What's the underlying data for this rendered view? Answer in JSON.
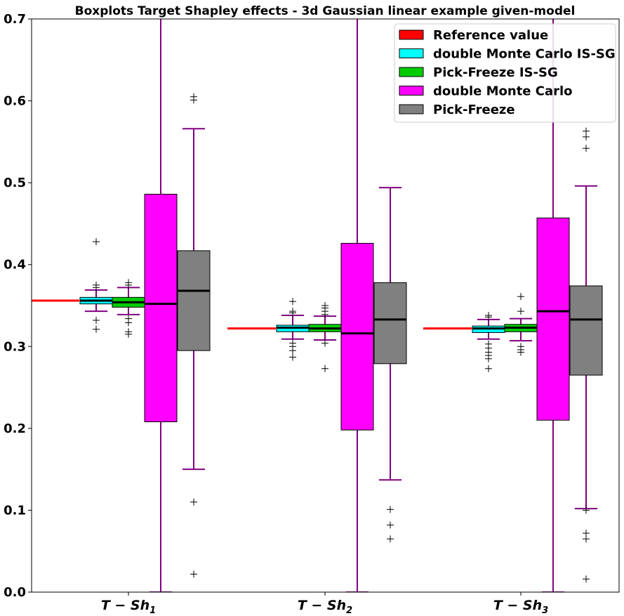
{
  "chart_data": {
    "type": "boxplot",
    "title": "Boxplots Target Shapley effects - 3d Gaussian linear example given-model",
    "xlabel": "",
    "ylabel": "",
    "ylim": [
      0,
      0.7
    ],
    "yticks": [
      "0.0",
      "0.1",
      "0.2",
      "0.3",
      "0.4",
      "0.5",
      "0.6",
      "0.7"
    ],
    "yticks_values": [
      0.0,
      0.1,
      0.2,
      0.3,
      0.4,
      0.5,
      0.6,
      0.7
    ],
    "categories": [
      {
        "main": "T − Sh",
        "sub": "1"
      },
      {
        "main": "T − Sh",
        "sub": "2"
      },
      {
        "main": "T − Sh",
        "sub": "3"
      }
    ],
    "legend_position": "top-right",
    "colors": {
      "reference": "#ff0000",
      "whisker": "#800080",
      "median": "#000000"
    },
    "reference_values": [
      0.356,
      0.322,
      0.322
    ],
    "series": [
      {
        "name": "Reference value",
        "color": "#ff0000",
        "kind": "reference"
      },
      {
        "name": "double Monte Carlo IS-SG",
        "color": "#00ffff",
        "kind": "box",
        "boxes": [
          {
            "whislo": 0.343,
            "q1": 0.352,
            "med": 0.356,
            "q3": 0.36,
            "whishi": 0.369,
            "fliers": [
              0.321,
              0.332,
              0.372,
              0.375,
              0.428
            ]
          },
          {
            "whislo": 0.309,
            "q1": 0.318,
            "med": 0.323,
            "q3": 0.326,
            "whishi": 0.338,
            "fliers": [
              0.287,
              0.295,
              0.3,
              0.304,
              0.341,
              0.343,
              0.355
            ]
          },
          {
            "whislo": 0.309,
            "q1": 0.317,
            "med": 0.322,
            "q3": 0.325,
            "whishi": 0.333,
            "fliers": [
              0.273,
              0.285,
              0.289,
              0.293,
              0.298,
              0.303,
              0.336,
              0.338
            ]
          }
        ]
      },
      {
        "name": "Pick-Freeze IS-SG",
        "color": "#00cc00",
        "kind": "box",
        "boxes": [
          {
            "whislo": 0.339,
            "q1": 0.348,
            "med": 0.354,
            "q3": 0.36,
            "whishi": 0.372,
            "fliers": [
              0.315,
              0.318,
              0.329,
              0.334,
              0.375,
              0.378
            ]
          },
          {
            "whislo": 0.308,
            "q1": 0.318,
            "med": 0.322,
            "q3": 0.327,
            "whishi": 0.337,
            "fliers": [
              0.273,
              0.304,
              0.339,
              0.343,
              0.347,
              0.35
            ]
          },
          {
            "whislo": 0.307,
            "q1": 0.318,
            "med": 0.323,
            "q3": 0.327,
            "whishi": 0.334,
            "fliers": [
              0.293,
              0.296,
              0.3,
              0.343,
              0.361
            ]
          }
        ]
      },
      {
        "name": "double Monte Carlo",
        "color": "#ff00ff",
        "kind": "box",
        "boxes": [
          {
            "whislo": 0.0,
            "q1": 0.208,
            "med": 0.352,
            "q3": 0.486,
            "whishi": 0.72,
            "fliers": []
          },
          {
            "whislo": 0.0,
            "q1": 0.198,
            "med": 0.316,
            "q3": 0.426,
            "whishi": 0.72,
            "fliers": []
          },
          {
            "whislo": 0.0,
            "q1": 0.21,
            "med": 0.343,
            "q3": 0.457,
            "whishi": 0.72,
            "fliers": []
          }
        ]
      },
      {
        "name": "Pick-Freeze",
        "color": "#808080",
        "kind": "box",
        "boxes": [
          {
            "whislo": 0.15,
            "q1": 0.295,
            "med": 0.368,
            "q3": 0.417,
            "whishi": 0.566,
            "fliers": [
              0.022,
              0.11,
              0.601,
              0.605
            ]
          },
          {
            "whislo": 0.137,
            "q1": 0.279,
            "med": 0.333,
            "q3": 0.378,
            "whishi": 0.494,
            "fliers": [
              0.065,
              0.082,
              0.101
            ]
          },
          {
            "whislo": 0.102,
            "q1": 0.265,
            "med": 0.333,
            "q3": 0.374,
            "whishi": 0.496,
            "fliers": [
              0.016,
              0.065,
              0.072,
              0.1,
              0.542,
              0.556,
              0.563
            ]
          }
        ]
      }
    ]
  }
}
